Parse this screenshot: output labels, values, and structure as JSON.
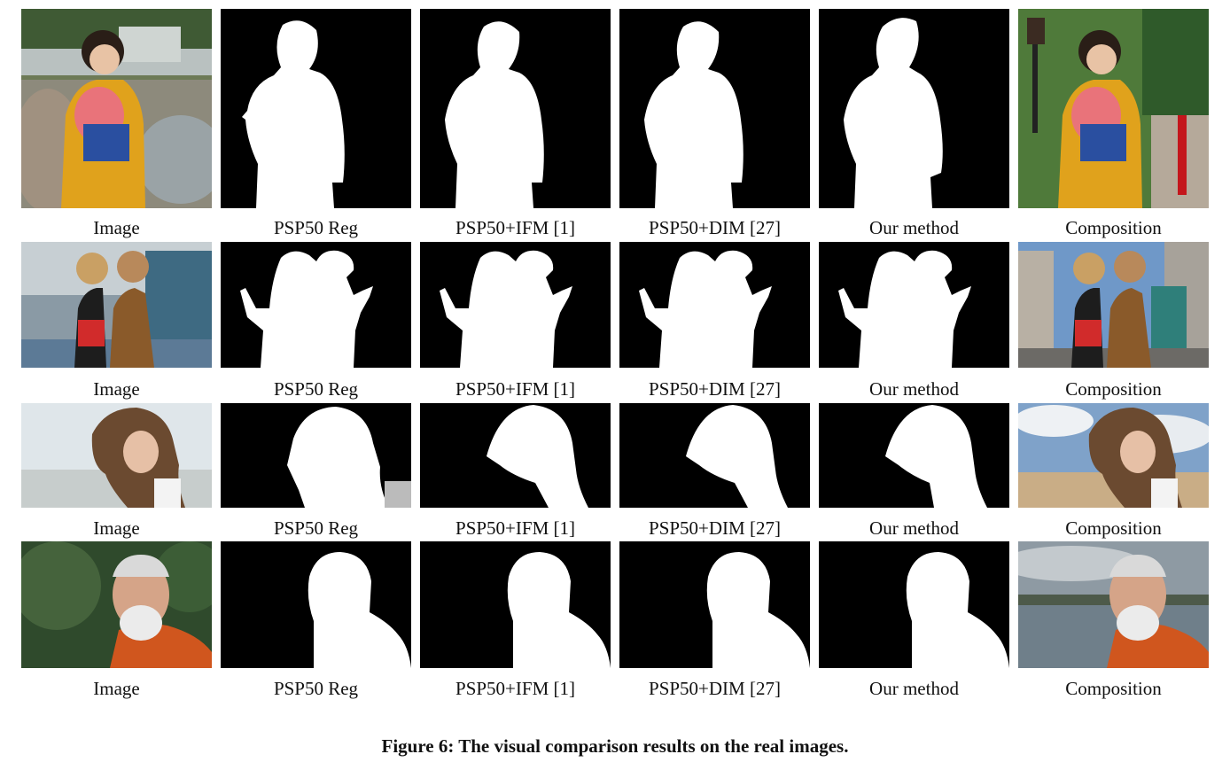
{
  "figure": {
    "caption": "Figure 6:  The visual comparison results on the real images."
  },
  "rows": [
    {
      "captions": [
        "Image",
        "PSP50 Reg",
        "PSP50+IFM [1]",
        "PSP50+DIM [27]",
        "Our method",
        "Composition"
      ]
    },
    {
      "captions": [
        "Image",
        "PSP50 Reg",
        "PSP50+IFM [1]",
        "PSP50+DIM [27]",
        "Our method",
        "Composition"
      ]
    },
    {
      "captions": [
        "Image",
        "PSP50 Reg",
        "PSP50+IFM [1]",
        "PSP50+DIM [27]",
        "Our method",
        "Composition"
      ]
    },
    {
      "captions": [
        "Image",
        "PSP50 Reg",
        "PSP50+IFM [1]",
        "PSP50+DIM [27]",
        "Our method",
        "Composition"
      ]
    }
  ],
  "colors": {
    "matte_background": "#000000",
    "matte_foreground": "#ffffff",
    "kimono": "#e0a21c",
    "sky": "#6f98c8",
    "foliage": "#4f7a3a"
  }
}
